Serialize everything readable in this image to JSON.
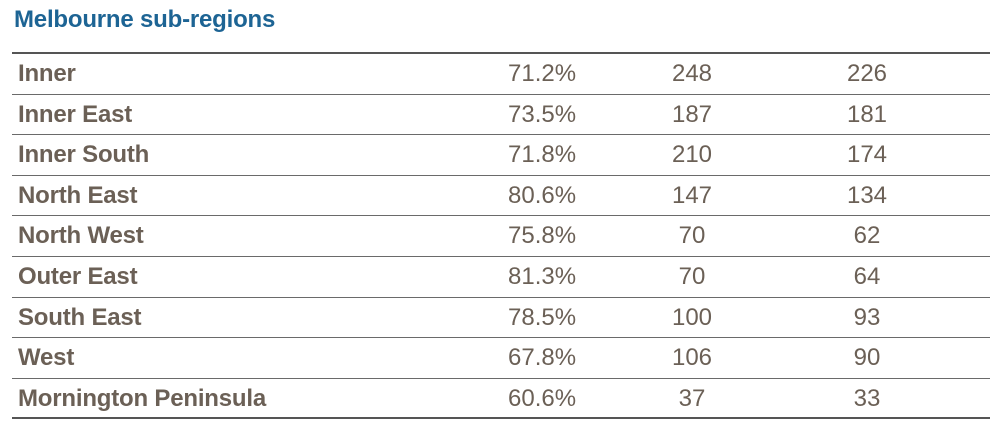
{
  "title": "Melbourne sub-regions",
  "rows": [
    {
      "region": "Inner",
      "pct": "71.2%",
      "v1": "248",
      "v2": "226"
    },
    {
      "region": "Inner East",
      "pct": "73.5%",
      "v1": "187",
      "v2": "181"
    },
    {
      "region": "Inner South",
      "pct": "71.8%",
      "v1": "210",
      "v2": "174"
    },
    {
      "region": "North East",
      "pct": "80.6%",
      "v1": "147",
      "v2": "134"
    },
    {
      "region": "North West",
      "pct": "75.8%",
      "v1": "70",
      "v2": "62"
    },
    {
      "region": "Outer East",
      "pct": "81.3%",
      "v1": "70",
      "v2": "64"
    },
    {
      "region": "South East",
      "pct": "78.5%",
      "v1": "100",
      "v2": "93"
    },
    {
      "region": "West",
      "pct": "67.8%",
      "v1": "106",
      "v2": "90"
    },
    {
      "region": "Mornington Peninsula",
      "pct": "60.6%",
      "v1": "37",
      "v2": "33"
    }
  ]
}
